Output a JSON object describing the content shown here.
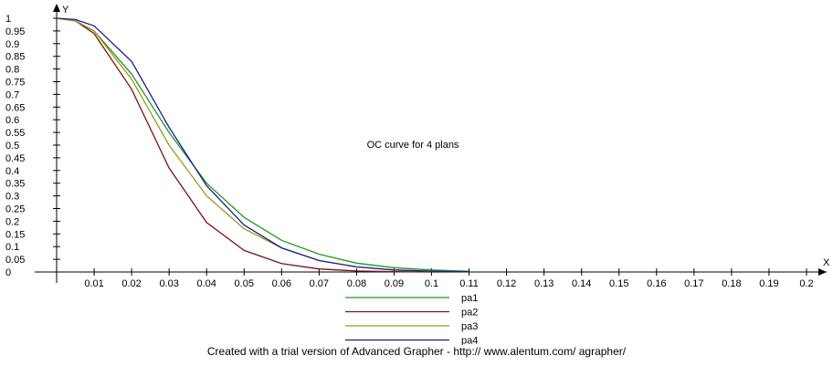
{
  "footer": "Created with a trial version of Advanced Grapher - http:// www.alentum.com/ agrapher/",
  "chart_data": {
    "type": "line",
    "title": "OC curve for 4 plans",
    "xlabel": "X",
    "ylabel": "Y",
    "xlim": [
      0,
      0.2
    ],
    "ylim": [
      0,
      1
    ],
    "x_ticks": [
      "0.01",
      "0.02",
      "0.03",
      "0.04",
      "0.05",
      "0.06",
      "0.07",
      "0.08",
      "0.09",
      "0.1",
      "0.11",
      "0.12",
      "0.13",
      "0.14",
      "0.15",
      "0.16",
      "0.17",
      "0.18",
      "0.19",
      "0.2"
    ],
    "y_ticks": [
      "0",
      "0.05",
      "0.1",
      "0.15",
      "0.2",
      "0.25",
      "0.3",
      "0.35",
      "0.4",
      "0.45",
      "0.5",
      "0.55",
      "0.6",
      "0.65",
      "0.7",
      "0.75",
      "0.8",
      "0.85",
      "0.9",
      "0.95",
      "1"
    ],
    "legend_position": "bottom-center",
    "x": [
      0,
      0.005,
      0.01,
      0.02,
      0.03,
      0.04,
      0.05,
      0.06,
      0.07,
      0.08,
      0.09,
      0.1,
      0.11
    ],
    "series": [
      {
        "name": "pa1",
        "color": "#1e9a1e",
        "values": [
          1.0,
          0.99,
          0.95,
          0.78,
          0.55,
          0.35,
          0.215,
          0.125,
          0.07,
          0.035,
          0.017,
          0.008,
          0.003
        ]
      },
      {
        "name": "pa2",
        "color": "#7a1212",
        "values": [
          1.0,
          0.99,
          0.94,
          0.72,
          0.41,
          0.195,
          0.085,
          0.033,
          0.012,
          0.004,
          0.001,
          0.0,
          0.0
        ]
      },
      {
        "name": "pa3",
        "color": "#9a9a1e",
        "values": [
          1.0,
          0.99,
          0.95,
          0.76,
          0.5,
          0.3,
          0.17,
          0.095,
          0.045,
          0.02,
          0.008,
          0.003,
          0.001
        ]
      },
      {
        "name": "pa4",
        "color": "#1e1e8a",
        "values": [
          1.0,
          0.995,
          0.97,
          0.83,
          0.57,
          0.34,
          0.185,
          0.095,
          0.045,
          0.02,
          0.008,
          0.003,
          0.001
        ]
      }
    ]
  }
}
